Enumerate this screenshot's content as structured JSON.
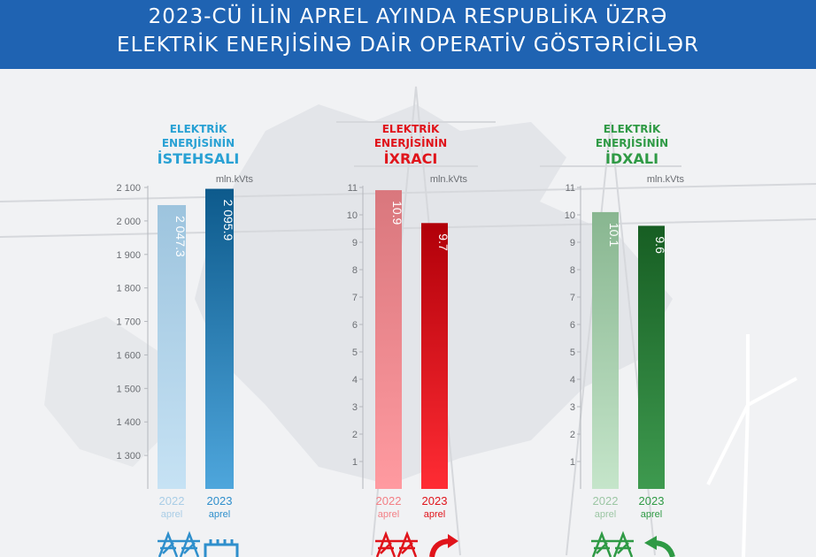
{
  "header": {
    "line1": "2023-CÜ İLİN APREL AYINDA RESPUBLİKA ÜZRƏ",
    "line2": "ELEKTRİK ENERJİSİNƏ DAİR OPERATİV GÖSTƏRİCİLƏR"
  },
  "colors": {
    "banner": "#1f63b2",
    "production": [
      "#a9cde6",
      "#0c5e92"
    ],
    "export": [
      "#f37f85",
      "#c8000a"
    ],
    "import": [
      "#9cc6a4",
      "#1f6b2c"
    ],
    "production_label": "#29a1d4",
    "export_label": "#e0141b",
    "import_label": "#2f9a45"
  },
  "chart_data": [
    {
      "type": "bar",
      "title_line1": "ELEKTRİK",
      "title_line2": "ENERJİSİNİN",
      "title_line3": "İSTEHSALI",
      "unit": "mln.kVts",
      "categories": [
        "2022",
        "2023"
      ],
      "category_sub": [
        "aprel",
        "aprel"
      ],
      "values": [
        2047.3,
        2095.9
      ],
      "value_labels": [
        "2 047.3",
        "2 095.9"
      ],
      "ylim": [
        1200,
        2100
      ],
      "yticks": [
        1300,
        1400,
        1500,
        1600,
        1700,
        1800,
        1900,
        2000,
        2100
      ],
      "ytick_labels": [
        "1 300",
        "1 400",
        "1 500",
        "1 600",
        "1 700",
        "1 800",
        "1 900",
        "2 000",
        "2 100"
      ],
      "colorKey": "production"
    },
    {
      "type": "bar",
      "title_line1": "ELEKTRİK",
      "title_line2": "ENERJİSİNİN",
      "title_line3": "İXRACI",
      "unit": "mln.kVts",
      "categories": [
        "2022",
        "2023"
      ],
      "category_sub": [
        "aprel",
        "aprel"
      ],
      "values": [
        10.9,
        9.7
      ],
      "value_labels": [
        "10.9",
        "9.7"
      ],
      "ylim": [
        0,
        11
      ],
      "yticks": [
        1,
        2,
        3,
        4,
        5,
        6,
        7,
        8,
        9,
        10,
        11
      ],
      "ytick_labels": [
        "1",
        "2",
        "3",
        "4",
        "5",
        "6",
        "7",
        "8",
        "9",
        "10",
        "11"
      ],
      "colorKey": "export"
    },
    {
      "type": "bar",
      "title_line1": "ELEKTRİK",
      "title_line2": "ENERJİSİNİN",
      "title_line3": "İDXALI",
      "unit": "mln.kVts",
      "categories": [
        "2022",
        "2023"
      ],
      "category_sub": [
        "aprel",
        "aprel"
      ],
      "values": [
        10.1,
        9.6
      ],
      "value_labels": [
        "10.1",
        "9.6"
      ],
      "ylim": [
        0,
        11
      ],
      "yticks": [
        1,
        2,
        3,
        4,
        5,
        6,
        7,
        8,
        9,
        10,
        11
      ],
      "ytick_labels": [
        "1",
        "2",
        "3",
        "4",
        "5",
        "6",
        "7",
        "8",
        "9",
        "10",
        "11"
      ],
      "colorKey": "import"
    }
  ]
}
